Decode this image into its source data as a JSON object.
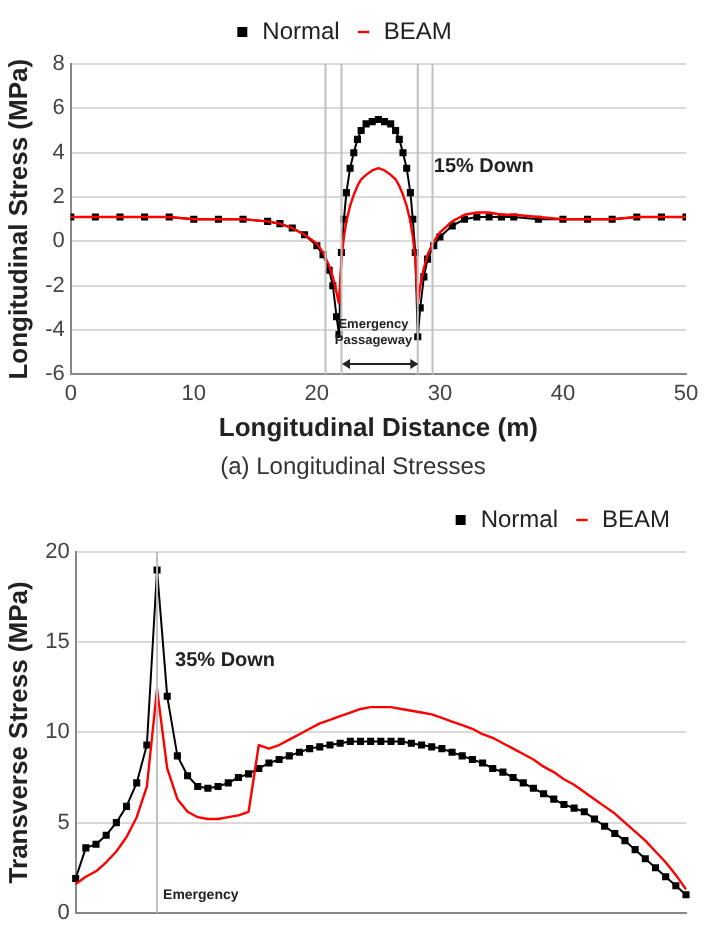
{
  "chart_data": [
    {
      "type": "line",
      "xlabel": "Longitudinal Distance (m)",
      "ylabel": "Longitudinal Stress (MPa)",
      "x": [
        0,
        2,
        4,
        6,
        8,
        10,
        12,
        14,
        16,
        17,
        18,
        19,
        20,
        20.5,
        21,
        21.3,
        21.6,
        21.8,
        22,
        22.2,
        22.4,
        22.7,
        23,
        23.3,
        23.6,
        24,
        24.5,
        25,
        25.5,
        26,
        26.4,
        26.7,
        27,
        27.3,
        27.6,
        27.8,
        28,
        28.2,
        28.4,
        28.7,
        29,
        29.5,
        30,
        31,
        32,
        33,
        34,
        35,
        36,
        38,
        40,
        42,
        44,
        46,
        48,
        50
      ],
      "series": [
        {
          "name": "Normal",
          "color": "#000000",
          "marker": "square",
          "values": [
            1.1,
            1.1,
            1.1,
            1.1,
            1.1,
            1.0,
            1.0,
            1.0,
            0.9,
            0.8,
            0.6,
            0.3,
            -0.2,
            -0.6,
            -1.3,
            -2.0,
            -3.4,
            -4.2,
            -0.5,
            1.0,
            2.2,
            3.3,
            4.0,
            4.6,
            5.0,
            5.3,
            5.4,
            5.5,
            5.4,
            5.3,
            5.0,
            4.6,
            4.0,
            3.3,
            2.2,
            1.0,
            -0.5,
            -4.3,
            -3.0,
            -1.6,
            -0.8,
            -0.2,
            0.2,
            0.7,
            1.0,
            1.1,
            1.1,
            1.1,
            1.1,
            1.0,
            1.0,
            1.0,
            1.0,
            1.1,
            1.1,
            1.1
          ]
        },
        {
          "name": "BEAM",
          "color": "#ff0000",
          "marker": "none",
          "values": [
            1.1,
            1.1,
            1.1,
            1.1,
            1.1,
            1.0,
            1.0,
            1.0,
            0.9,
            0.8,
            0.6,
            0.3,
            -0.1,
            -0.5,
            -1.1,
            -1.6,
            -2.3,
            -2.8,
            -0.8,
            0.2,
            0.9,
            1.6,
            2.1,
            2.5,
            2.8,
            3.0,
            3.2,
            3.3,
            3.2,
            3.0,
            2.8,
            2.5,
            2.1,
            1.6,
            0.9,
            0.2,
            -0.8,
            -2.8,
            -2.0,
            -1.2,
            -0.6,
            0.0,
            0.4,
            0.9,
            1.2,
            1.3,
            1.3,
            1.2,
            1.2,
            1.1,
            1.0,
            1.0,
            1.0,
            1.1,
            1.1,
            1.1
          ]
        }
      ],
      "xlim": [
        0,
        50
      ],
      "xticks": [
        0,
        10,
        20,
        30,
        40,
        50
      ],
      "ylim": [
        -6,
        8
      ],
      "yticks": [
        -6,
        -4,
        -2,
        0,
        2,
        4,
        6,
        8
      ],
      "grid": "y",
      "legend": "top",
      "ref_lines": [
        {
          "axis": "x",
          "value": 20.7,
          "color": "#bfbfbf"
        },
        {
          "axis": "x",
          "value": 22,
          "color": "#bfbfbf"
        },
        {
          "axis": "x",
          "value": 28.2,
          "color": "#bfbfbf"
        },
        {
          "axis": "x",
          "value": 29.4,
          "color": "#bfbfbf"
        }
      ],
      "annotations": [
        "15% Down",
        "Emergency Passageway",
        "(a) Longitudinal Stresses"
      ]
    },
    {
      "type": "line",
      "ylabel": "Transverse Stress (MPa)",
      "categories": [
        null,
        null,
        null,
        null,
        null,
        null,
        null,
        null,
        null,
        null,
        null,
        null,
        null,
        null,
        null,
        null,
        null,
        null,
        null,
        null,
        null,
        null,
        null,
        null,
        null,
        null,
        null,
        null,
        null,
        null,
        null,
        null,
        null,
        null,
        null,
        null,
        null,
        null,
        null,
        null,
        null,
        null,
        null,
        null,
        null,
        null,
        null,
        null,
        null,
        null,
        null,
        null,
        null,
        null,
        null,
        null,
        null,
        null,
        null,
        null,
        null
      ],
      "series": [
        {
          "name": "Normal",
          "color": "#000000",
          "marker": "square",
          "values": [
            1.9,
            3.6,
            3.8,
            4.3,
            5.0,
            5.9,
            7.2,
            9.3,
            19.0,
            12.0,
            8.7,
            7.6,
            7.0,
            6.9,
            7.0,
            7.2,
            7.5,
            7.7,
            8.0,
            8.3,
            8.5,
            8.7,
            8.9,
            9.1,
            9.2,
            9.3,
            9.4,
            9.5,
            9.5,
            9.5,
            9.5,
            9.5,
            9.5,
            9.4,
            9.3,
            9.2,
            9.1,
            8.9,
            8.7,
            8.5,
            8.3,
            8.0,
            7.8,
            7.5,
            7.2,
            6.9,
            6.6,
            6.3,
            6.0,
            5.8,
            5.6,
            5.2,
            4.8,
            4.4,
            4.0,
            3.5,
            3.0,
            2.5,
            2.0,
            1.5,
            1.0
          ]
        },
        {
          "name": "BEAM",
          "color": "#ff0000",
          "marker": "none",
          "values": [
            1.6,
            2.0,
            2.3,
            2.8,
            3.4,
            4.2,
            5.3,
            7.0,
            12.4,
            8.0,
            6.3,
            5.6,
            5.3,
            5.2,
            5.2,
            5.3,
            5.4,
            5.6,
            9.3,
            9.1,
            9.3,
            9.6,
            9.9,
            10.2,
            10.5,
            10.7,
            10.9,
            11.1,
            11.3,
            11.4,
            11.4,
            11.4,
            11.3,
            11.2,
            11.1,
            11.0,
            10.8,
            10.6,
            10.4,
            10.2,
            9.9,
            9.7,
            9.4,
            9.1,
            8.8,
            8.5,
            8.1,
            7.8,
            7.4,
            7.1,
            6.7,
            6.3,
            5.9,
            5.5,
            5.0,
            4.5,
            4.0,
            3.4,
            2.8,
            2.1,
            1.3
          ]
        }
      ],
      "ylim": [
        0,
        20
      ],
      "yticks": [
        0,
        5,
        10,
        15,
        20
      ],
      "grid": "y",
      "legend": "top right",
      "tick_labels": "y",
      "annotations": [
        "35% Down",
        "Emergency"
      ]
    }
  ]
}
